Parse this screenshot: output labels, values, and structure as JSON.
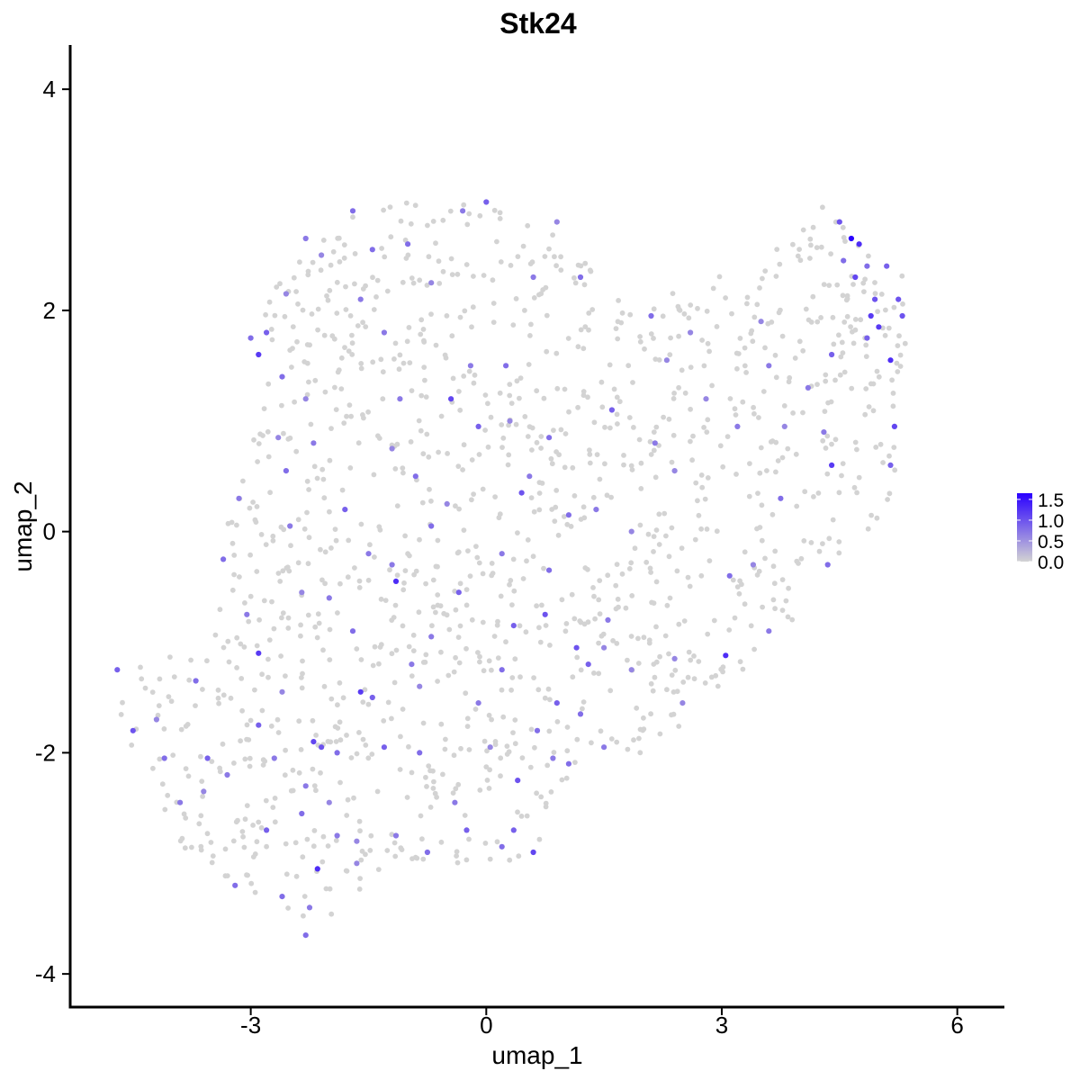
{
  "chart_data": {
    "type": "scatter",
    "title": "Stk24",
    "xlabel": "umap_1",
    "ylabel": "umap_2",
    "xlim": [
      -5.3,
      6.6
    ],
    "ylim": [
      -4.3,
      4.4
    ],
    "x_ticks": [
      -3,
      0,
      3,
      6
    ],
    "x_tick_labels": [
      "-3",
      "0",
      "3",
      "6"
    ],
    "y_ticks": [
      -4,
      -2,
      0,
      2,
      4
    ],
    "y_tick_labels": [
      "-4",
      "-2",
      "0",
      "2",
      "4"
    ],
    "grid": false,
    "color_scale": {
      "low_color": "#d3d3d3",
      "high_color": "#2a00ff",
      "range": [
        0,
        1.65
      ],
      "ticks": [
        0,
        0.5,
        1.0,
        1.5
      ],
      "tick_labels": [
        "0.0",
        "0.5",
        "1.0",
        "1.5"
      ],
      "legend_position": "right"
    },
    "points": [
      {
        "x": 0.9,
        "y": 2.8,
        "v": 0.6
      },
      {
        "x": -0.3,
        "y": 2.9,
        "v": 0.7
      },
      {
        "x": 0.0,
        "y": 2.98,
        "v": 0.9
      },
      {
        "x": -1.7,
        "y": 2.9,
        "v": 0.8
      },
      {
        "x": -2.1,
        "y": 2.5,
        "v": 0.6
      },
      {
        "x": -1.45,
        "y": 2.55,
        "v": 0.8
      },
      {
        "x": -1.6,
        "y": 2.1,
        "v": 0.7
      },
      {
        "x": -2.55,
        "y": 2.15,
        "v": 0.6
      },
      {
        "x": -2.8,
        "y": 1.8,
        "v": 0.9
      },
      {
        "x": -2.9,
        "y": 1.6,
        "v": 1.2
      },
      {
        "x": -2.6,
        "y": 1.4,
        "v": 0.8
      },
      {
        "x": -2.3,
        "y": 1.2,
        "v": 0.6
      },
      {
        "x": -1.3,
        "y": 1.8,
        "v": 0.7
      },
      {
        "x": -0.45,
        "y": 1.2,
        "v": 1.1
      },
      {
        "x": -0.2,
        "y": 1.5,
        "v": 0.7
      },
      {
        "x": 0.25,
        "y": 1.5,
        "v": 0.8
      },
      {
        "x": -0.1,
        "y": 0.95,
        "v": 0.9
      },
      {
        "x": 0.8,
        "y": 0.85,
        "v": 0.8
      },
      {
        "x": 1.6,
        "y": 1.1,
        "v": 0.9
      },
      {
        "x": 2.1,
        "y": 1.95,
        "v": 0.8
      },
      {
        "x": 2.3,
        "y": 1.55,
        "v": 0.6
      },
      {
        "x": 3.5,
        "y": 1.9,
        "v": 0.6
      },
      {
        "x": 4.1,
        "y": 1.3,
        "v": 0.7
      },
      {
        "x": 4.4,
        "y": 1.6,
        "v": 0.9
      },
      {
        "x": 4.5,
        "y": 2.8,
        "v": 1.0
      },
      {
        "x": 4.65,
        "y": 2.65,
        "v": 1.65
      },
      {
        "x": 4.75,
        "y": 2.6,
        "v": 1.3
      },
      {
        "x": 4.7,
        "y": 2.3,
        "v": 1.1
      },
      {
        "x": 4.95,
        "y": 2.1,
        "v": 1.0
      },
      {
        "x": 5.1,
        "y": 2.4,
        "v": 0.9
      },
      {
        "x": 5.25,
        "y": 2.1,
        "v": 1.0
      },
      {
        "x": 5.3,
        "y": 1.95,
        "v": 1.0
      },
      {
        "x": 5.0,
        "y": 1.85,
        "v": 1.2
      },
      {
        "x": 5.15,
        "y": 1.55,
        "v": 1.3
      },
      {
        "x": 4.85,
        "y": 1.75,
        "v": 0.9
      },
      {
        "x": 5.2,
        "y": 0.95,
        "v": 1.1
      },
      {
        "x": 5.15,
        "y": 0.6,
        "v": 0.9
      },
      {
        "x": 4.4,
        "y": 0.6,
        "v": 1.2
      },
      {
        "x": 4.3,
        "y": 0.9,
        "v": 0.7
      },
      {
        "x": 3.8,
        "y": 0.95,
        "v": 0.6
      },
      {
        "x": 4.35,
        "y": -0.3,
        "v": 0.8
      },
      {
        "x": 3.1,
        "y": -0.4,
        "v": 0.8
      },
      {
        "x": 3.05,
        "y": -1.12,
        "v": 1.3
      },
      {
        "x": 3.6,
        "y": -0.9,
        "v": 0.7
      },
      {
        "x": 1.55,
        "y": -0.8,
        "v": 0.7
      },
      {
        "x": 1.15,
        "y": -1.05,
        "v": 1.0
      },
      {
        "x": 1.5,
        "y": -1.05,
        "v": 0.6
      },
      {
        "x": 0.75,
        "y": -0.75,
        "v": 1.0
      },
      {
        "x": 0.35,
        "y": -0.85,
        "v": 0.9
      },
      {
        "x": -0.35,
        "y": -0.55,
        "v": 0.9
      },
      {
        "x": -1.15,
        "y": -0.45,
        "v": 1.3
      },
      {
        "x": -1.5,
        "y": -0.2,
        "v": 0.7
      },
      {
        "x": -0.9,
        "y": 0.5,
        "v": 0.8
      },
      {
        "x": -2.5,
        "y": 0.05,
        "v": 0.7
      },
      {
        "x": -3.35,
        "y": -0.25,
        "v": 0.8
      },
      {
        "x": -2.9,
        "y": -1.1,
        "v": 1.2
      },
      {
        "x": -2.6,
        "y": -1.45,
        "v": 0.6
      },
      {
        "x": -3.7,
        "y": -1.35,
        "v": 0.8
      },
      {
        "x": -4.5,
        "y": -1.8,
        "v": 1.0
      },
      {
        "x": -4.7,
        "y": -1.25,
        "v": 0.9
      },
      {
        "x": -4.2,
        "y": -1.7,
        "v": 0.6
      },
      {
        "x": -4.1,
        "y": -2.05,
        "v": 0.8
      },
      {
        "x": -3.55,
        "y": -2.05,
        "v": 0.9
      },
      {
        "x": -3.3,
        "y": -2.2,
        "v": 0.7
      },
      {
        "x": -2.9,
        "y": -1.75,
        "v": 0.9
      },
      {
        "x": -2.7,
        "y": -2.05,
        "v": 0.7
      },
      {
        "x": -2.2,
        "y": -1.9,
        "v": 1.1
      },
      {
        "x": -2.1,
        "y": -1.95,
        "v": 1.0
      },
      {
        "x": -1.9,
        "y": -2.0,
        "v": 0.8
      },
      {
        "x": -2.3,
        "y": -2.3,
        "v": 0.7
      },
      {
        "x": -2.0,
        "y": -2.45,
        "v": 0.6
      },
      {
        "x": -2.15,
        "y": -3.05,
        "v": 1.3
      },
      {
        "x": -2.25,
        "y": -3.4,
        "v": 0.7
      },
      {
        "x": -2.8,
        "y": -2.7,
        "v": 0.9
      },
      {
        "x": -3.2,
        "y": -3.2,
        "v": 0.8
      },
      {
        "x": -2.6,
        "y": -3.3,
        "v": 0.8
      },
      {
        "x": -1.65,
        "y": -2.8,
        "v": 0.6
      },
      {
        "x": -1.3,
        "y": -1.95,
        "v": 0.9
      },
      {
        "x": -0.85,
        "y": -2.0,
        "v": 0.8
      },
      {
        "x": -0.4,
        "y": -2.45,
        "v": 0.7
      },
      {
        "x": -0.25,
        "y": -2.7,
        "v": 0.9
      },
      {
        "x": 0.2,
        "y": -2.85,
        "v": 0.8
      },
      {
        "x": 0.35,
        "y": -2.7,
        "v": 0.9
      },
      {
        "x": 0.6,
        "y": -2.9,
        "v": 1.1
      },
      {
        "x": 0.4,
        "y": -2.25,
        "v": 1.0
      },
      {
        "x": 0.85,
        "y": -2.05,
        "v": 0.7
      },
      {
        "x": 1.05,
        "y": -2.1,
        "v": 0.8
      },
      {
        "x": 1.5,
        "y": -1.95,
        "v": 0.7
      },
      {
        "x": 1.2,
        "y": -1.65,
        "v": 0.8
      },
      {
        "x": 0.9,
        "y": -1.55,
        "v": 0.9
      },
      {
        "x": 1.85,
        "y": -1.25,
        "v": 0.6
      },
      {
        "x": 0.2,
        "y": -1.25,
        "v": 0.8
      },
      {
        "x": -0.1,
        "y": -1.55,
        "v": 0.7
      },
      {
        "x": -0.85,
        "y": -1.4,
        "v": 0.6
      },
      {
        "x": -1.45,
        "y": -1.5,
        "v": 0.9
      },
      {
        "x": -1.6,
        "y": -1.45,
        "v": 1.2
      },
      {
        "x": -0.95,
        "y": -1.2,
        "v": 0.7
      },
      {
        "x": 0.45,
        "y": 0.35,
        "v": 1.0
      },
      {
        "x": 1.05,
        "y": 0.15,
        "v": 0.8
      },
      {
        "x": 2.15,
        "y": 0.8,
        "v": 0.7
      },
      {
        "x": 2.4,
        "y": 0.55,
        "v": 0.6
      },
      {
        "x": 2.8,
        "y": 1.2,
        "v": 0.6
      },
      {
        "x": 3.2,
        "y": 0.95,
        "v": 0.7
      },
      {
        "x": 3.75,
        "y": 0.3,
        "v": 0.8
      },
      {
        "x": -2.2,
        "y": 0.8,
        "v": 0.7
      },
      {
        "x": -2.55,
        "y": 0.55,
        "v": 0.8
      },
      {
        "x": -3.15,
        "y": 0.3,
        "v": 0.7
      },
      {
        "x": -1.8,
        "y": 0.2,
        "v": 0.9
      },
      {
        "x": -1.2,
        "y": 0.75,
        "v": 0.6
      },
      {
        "x": -0.7,
        "y": 0.05,
        "v": 0.8
      },
      {
        "x": 0.55,
        "y": 0.5,
        "v": 0.7
      },
      {
        "x": -2.0,
        "y": -0.6,
        "v": 0.7
      },
      {
        "x": -1.7,
        "y": -0.9,
        "v": 0.8
      },
      {
        "x": -2.35,
        "y": -0.55,
        "v": 0.6
      },
      {
        "x": -3.05,
        "y": -0.75,
        "v": 0.7
      },
      {
        "x": -2.3,
        "y": -3.65,
        "v": 0.8
      },
      {
        "x": -1.9,
        "y": -2.75,
        "v": 0.7
      },
      {
        "x": -1.15,
        "y": -2.75,
        "v": 0.7
      },
      {
        "x": -0.75,
        "y": -2.9,
        "v": 0.8
      },
      {
        "x": 0.05,
        "y": -1.95,
        "v": 0.6
      },
      {
        "x": 1.3,
        "y": -1.2,
        "v": 0.9
      },
      {
        "x": 2.4,
        "y": -1.15,
        "v": 0.6
      },
      {
        "x": 3.6,
        "y": 1.5,
        "v": 0.7
      },
      {
        "x": 2.6,
        "y": 1.8,
        "v": 0.6
      },
      {
        "x": 1.2,
        "y": 2.3,
        "v": 0.8
      },
      {
        "x": 0.6,
        "y": 2.3,
        "v": 0.7
      },
      {
        "x": -0.7,
        "y": 2.25,
        "v": 0.6
      },
      {
        "x": -1.0,
        "y": 2.6,
        "v": 0.8
      },
      {
        "x": -2.3,
        "y": 2.65,
        "v": 0.7
      },
      {
        "x": -3.0,
        "y": 1.75,
        "v": 0.8
      },
      {
        "x": -2.65,
        "y": 0.85,
        "v": 0.6
      },
      {
        "x": 0.8,
        "y": -0.35,
        "v": 0.8
      },
      {
        "x": 1.4,
        "y": 0.2,
        "v": 0.7
      },
      {
        "x": -0.5,
        "y": 0.25,
        "v": 0.6
      },
      {
        "x": -1.1,
        "y": 1.2,
        "v": 0.7
      },
      {
        "x": 0.3,
        "y": 1.0,
        "v": 0.6
      },
      {
        "x": -1.2,
        "y": -0.3,
        "v": 0.7
      },
      {
        "x": -3.6,
        "y": -2.35,
        "v": 0.6
      },
      {
        "x": -3.9,
        "y": -2.45,
        "v": 0.7
      },
      {
        "x": -2.35,
        "y": -2.55,
        "v": 0.8
      },
      {
        "x": -1.65,
        "y": -3.0,
        "v": 0.6
      },
      {
        "x": -0.7,
        "y": -0.95,
        "v": 0.7
      },
      {
        "x": 0.2,
        "y": -0.2,
        "v": 0.7
      },
      {
        "x": 1.85,
        "y": 0.0,
        "v": 0.6
      },
      {
        "x": 3.4,
        "y": -0.3,
        "v": 0.6
      },
      {
        "x": 4.55,
        "y": 2.45,
        "v": 0.8
      },
      {
        "x": 4.85,
        "y": 2.4,
        "v": 0.8
      },
      {
        "x": 4.9,
        "y": 1.95,
        "v": 1.2
      },
      {
        "x": 2.5,
        "y": -1.55,
        "v": 0.6
      },
      {
        "x": 0.65,
        "y": -1.8,
        "v": 0.8
      }
    ]
  }
}
